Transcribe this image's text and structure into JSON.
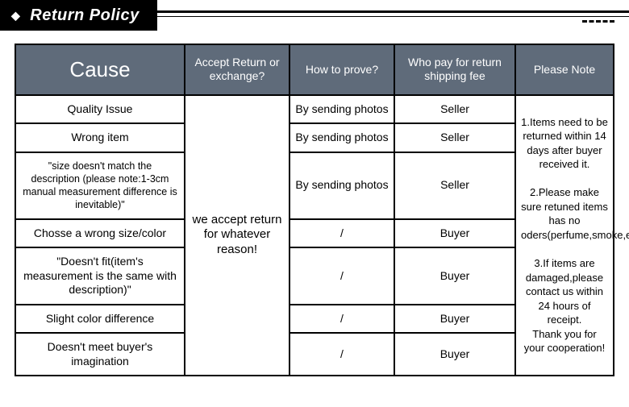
{
  "header": {
    "title": "Return Policy"
  },
  "colors": {
    "header_bg": "#5f6b7a",
    "header_text": "#ffffff",
    "border": "#000000",
    "page_bg": "#ffffff"
  },
  "table": {
    "columns": [
      {
        "label": "Cause"
      },
      {
        "label": "Accept Return or exchange?"
      },
      {
        "label": "How to prove?"
      },
      {
        "label": "Who pay for return shipping fee"
      },
      {
        "label": "Please Note"
      }
    ],
    "accept_text": "we accept return for whatever reason!",
    "rows": [
      {
        "cause": "Quality Issue",
        "prove": "By sending photos",
        "payer": "Seller"
      },
      {
        "cause": "Wrong item",
        "prove": "By sending photos",
        "payer": "Seller"
      },
      {
        "cause": "\"size doesn't match the description (please note:1-3cm manual measurement difference is inevitable)\"",
        "prove": "By sending photos",
        "payer": "Seller"
      },
      {
        "cause": "Chosse a wrong size/color",
        "prove": "/",
        "payer": "Buyer"
      },
      {
        "cause": "\"Doesn't fit(item's measurement is the same with description)\"",
        "prove": "/",
        "payer": "Buyer"
      },
      {
        "cause": "Slight color difference",
        "prove": "/",
        "payer": "Buyer"
      },
      {
        "cause": "Doesn't meet buyer's imagination",
        "prove": "/",
        "payer": "Buyer"
      }
    ],
    "note": "1.Items need to be returned within 14 days after buyer received it.\n\n2.Please make sure retuned items has no oders(perfume,smoke,etc.)\n\n3.If items are damaged,please contact us within 24 hours of receipt.\nThank you for your cooperation!"
  }
}
